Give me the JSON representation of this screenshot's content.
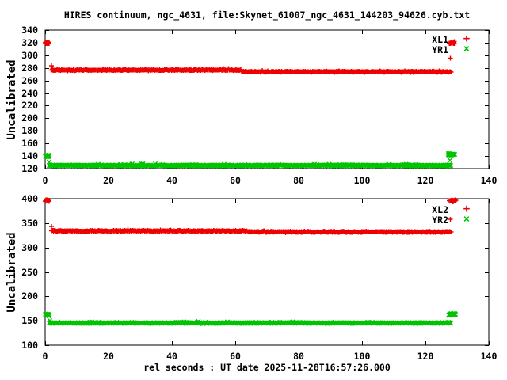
{
  "title": "HIRES continuum, ngc_4631, file:Skynet_61007_ngc_4631_144203_94626.cyb.txt",
  "xlabel": "rel seconds : UT date 2025-11-28T16:57:26.000",
  "colors": {
    "series_red": "#ee0000",
    "series_green": "#00c400",
    "frame": "#000000",
    "background": "#ffffff",
    "text": "#000000"
  },
  "chart_data": [
    {
      "type": "scatter",
      "panel": "top",
      "ylabel": "Uncalibrated",
      "xlim": [
        0,
        140
      ],
      "ylim": [
        120,
        340
      ],
      "xticks": [
        0,
        20,
        40,
        60,
        80,
        100,
        120,
        140
      ],
      "yticks": [
        120,
        140,
        160,
        180,
        200,
        220,
        240,
        260,
        280,
        300,
        320,
        340
      ],
      "grid": false,
      "legend": {
        "position": "top-right",
        "entries": [
          {
            "label": "XL1",
            "marker": "plus",
            "color": "#ee0000"
          },
          {
            "label": "YR1",
            "marker": "cross",
            "color": "#00c400"
          }
        ]
      },
      "series": [
        {
          "name": "XL1",
          "marker": "plus",
          "color": "#ee0000",
          "segments": [
            {
              "x0": 0.0,
              "x1": 1.3,
              "y": 320,
              "jitter": 2.2,
              "n": 28
            },
            {
              "x": 2.0,
              "y": 283.5
            },
            {
              "x": 2.4,
              "y": 279
            },
            {
              "x0": 1.8,
              "x1": 62.0,
              "y": 276.5,
              "jitter": 1.1,
              "n": 300
            },
            {
              "x0": 62.0,
              "x1": 128.2,
              "y": 273.8,
              "jitter": 1.1,
              "n": 330
            },
            {
              "x": 127.9,
              "y": 295.5
            },
            {
              "x0": 127.4,
              "x1": 129.6,
              "y": 319.5,
              "jitter": 2.2,
              "n": 22
            }
          ]
        },
        {
          "name": "YR1",
          "marker": "cross",
          "color": "#00c400",
          "segments": [
            {
              "x0": 0.0,
              "x1": 1.3,
              "y": 140,
              "jitter": 1.8,
              "n": 22
            },
            {
              "x": 1.3,
              "y": 130.5
            },
            {
              "x0": 1.2,
              "x1": 128.2,
              "y": 125,
              "jitter": 1.2,
              "n": 620
            },
            {
              "x": 127.7,
              "y": 133.5
            },
            {
              "x0": 127.2,
              "x1": 129.4,
              "y": 142.5,
              "jitter": 1.8,
              "n": 20
            }
          ]
        }
      ]
    },
    {
      "type": "scatter",
      "panel": "bottom",
      "ylabel": "Uncalibrated",
      "xlim": [
        0,
        140
      ],
      "ylim": [
        100,
        400
      ],
      "xticks": [
        0,
        20,
        40,
        60,
        80,
        100,
        120,
        140
      ],
      "yticks": [
        100,
        150,
        200,
        250,
        300,
        350,
        400
      ],
      "grid": false,
      "legend": {
        "position": "top-right",
        "entries": [
          {
            "label": "XL2",
            "marker": "plus",
            "color": "#ee0000"
          },
          {
            "label": "YR2",
            "marker": "cross",
            "color": "#00c400"
          }
        ]
      },
      "series": [
        {
          "name": "XL2",
          "marker": "plus",
          "color": "#ee0000",
          "segments": [
            {
              "x0": 0.0,
              "x1": 1.3,
              "y": 396,
              "jitter": 2.5,
              "n": 28
            },
            {
              "x": 2.0,
              "y": 343
            },
            {
              "x0": 1.8,
              "x1": 64.0,
              "y": 334,
              "jitter": 1.4,
              "n": 300
            },
            {
              "x0": 64.0,
              "x1": 128.2,
              "y": 332,
              "jitter": 1.4,
              "n": 330
            },
            {
              "x": 127.9,
              "y": 357.5
            },
            {
              "x0": 127.4,
              "x1": 129.6,
              "y": 396,
              "jitter": 2.5,
              "n": 22
            }
          ]
        },
        {
          "name": "YR2",
          "marker": "cross",
          "color": "#00c400",
          "segments": [
            {
              "x0": 0.0,
              "x1": 1.3,
              "y": 162,
              "jitter": 2.5,
              "n": 24
            },
            {
              "x": 1.5,
              "y": 150
            },
            {
              "x0": 1.2,
              "x1": 128.2,
              "y": 145.5,
              "jitter": 1.3,
              "n": 620
            },
            {
              "x0": 127.2,
              "x1": 129.6,
              "y": 163,
              "jitter": 2.5,
              "n": 22
            }
          ]
        }
      ]
    }
  ]
}
